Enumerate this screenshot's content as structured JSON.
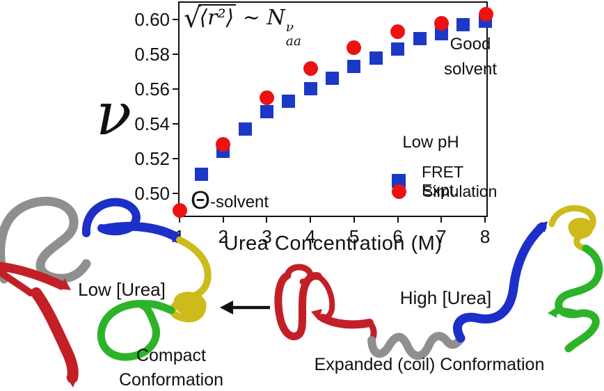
{
  "palette": {
    "fret_blue": "#1c38c8",
    "sim_red": "#ee1111",
    "ribbon_red": "#c22026",
    "ribbon_gray": "#8f8f8f",
    "ribbon_blue": "#1c2fc9",
    "ribbon_green": "#2db32a",
    "ribbon_yellow": "#cdbb1b",
    "ink": "#111111"
  },
  "chart_data": {
    "type": "scatter",
    "title_formula": {
      "radical": "√",
      "radicand": "⟨r²⟩",
      "relation": "∼",
      "base": "N",
      "sup": "ν",
      "sub": "aa"
    },
    "xlabel": "Urea Concentration (M)",
    "ylabel": "ν",
    "xlim": [
      1,
      8.03
    ],
    "ylim": [
      0.487,
      0.6097
    ],
    "x_ticks": [
      1,
      2,
      3,
      4,
      5,
      6,
      7,
      8
    ],
    "y_ticks": [
      0.5,
      0.52,
      0.54,
      0.56,
      0.58,
      0.6
    ],
    "grid": false,
    "legend": {
      "title": "Low pH",
      "position": "lower-right"
    },
    "annotations": {
      "theta_symbol": "Θ",
      "theta_rest": "-solvent",
      "good_solvent": "Good\nsolvent"
    },
    "series": [
      {
        "name": "FRET Expt.",
        "marker": "square",
        "color": "#1c38c8",
        "points": [
          [
            1.5,
            0.511
          ],
          [
            2,
            0.524
          ],
          [
            2.5,
            0.537
          ],
          [
            3,
            0.547
          ],
          [
            3.5,
            0.553
          ],
          [
            4,
            0.56
          ],
          [
            4.5,
            0.566
          ],
          [
            5,
            0.573
          ],
          [
            5.5,
            0.578
          ],
          [
            6,
            0.583
          ],
          [
            6.5,
            0.589
          ],
          [
            7,
            0.592
          ],
          [
            7.5,
            0.597
          ],
          [
            8,
            0.599
          ]
        ]
      },
      {
        "name": "Simulation",
        "marker": "circle",
        "color": "#ee1111",
        "points": [
          [
            1,
            0.49
          ],
          [
            2,
            0.528
          ],
          [
            3,
            0.555
          ],
          [
            4,
            0.572
          ],
          [
            5,
            0.584
          ],
          [
            6,
            0.593
          ],
          [
            7,
            0.598
          ],
          [
            8.02,
            0.603
          ]
        ]
      }
    ]
  },
  "illustration": {
    "low_urea_label": "Low [Urea]",
    "high_urea_label": "High [Urea]",
    "compact_label": "Compact\nConformation",
    "expanded_label": "Expanded (coil) Conformation"
  }
}
